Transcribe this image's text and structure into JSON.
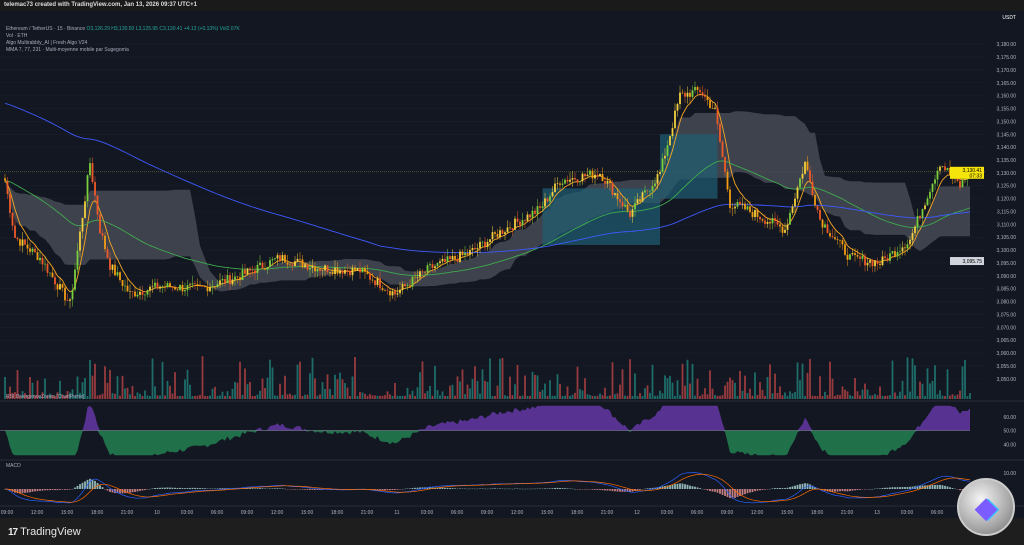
{
  "header": {
    "credit": "telemac73 created with TradingView.com, Jan 13, 2026 09:37 UTC+1"
  },
  "legend": {
    "symbol": "Ethereum / TetherUS · 15 · Binance",
    "ohlc": "O3,126.29 H3,130.50 L3,125.95 C3,130.41 +4.13 (+0.13%) Vol2.07K",
    "vol": "Vol · ETH",
    "algo": "Algo Multirabbly_AI | Fresh Algo V24",
    "mma": "MMA 7, 77, 231 · Multi-moyenne mobile par Sugegorria"
  },
  "footer": {
    "brand": "TradingView",
    "logo_mark": "17"
  },
  "coin_logo": {
    "icon": "crypto-coin-logo",
    "mark": "C"
  },
  "colors": {
    "background": "#131722",
    "up": "#26a69a",
    "down": "#ef5350",
    "candle_up": "#7ccf3c",
    "candle_down": "#f05a28",
    "ma_fast": "#f5a623",
    "ma_mid": "#3faa4f",
    "ma_slow": "#3d5afe",
    "cloud": "#4a4d57",
    "cloud_teal": "#1f5f73",
    "rsi_up": "#9c4dff",
    "rsi_down": "#2ecc71",
    "price_label": "#f5e50a"
  },
  "chart_data": [
    {
      "type": "candlestick",
      "title": "Ethereum / TetherUS · 15 · Binance",
      "currency": "USDT",
      "ylim": [
        3048,
        3182
      ],
      "yticks": [
        "3,180.00",
        "3,175.00",
        "3,170.00",
        "3,165.00",
        "3,160.00",
        "3,155.00",
        "3,150.00",
        "3,145.00",
        "3,140.00",
        "3,135.00",
        "3,130.00",
        "3,125.00",
        "3,120.00",
        "3,115.00",
        "3,110.00",
        "3,105.00",
        "3,100.00",
        "3,095.00",
        "3,090.00",
        "3,085.00",
        "3,080.00",
        "3,075.00",
        "3,070.00",
        "3,065.00",
        "3,060.00",
        "3,055.00",
        "3,050.00"
      ],
      "ytick_values": [
        3180,
        3175,
        3170,
        3165,
        3160,
        3155,
        3150,
        3145,
        3140,
        3135,
        3130,
        3125,
        3120,
        3115,
        3110,
        3105,
        3100,
        3095,
        3090,
        3085,
        3080,
        3075,
        3070,
        3065,
        3060,
        3055,
        3050
      ],
      "last_price": {
        "value": 3130.41,
        "label": "3,130.41",
        "countdown": "07:33"
      },
      "marked_price": {
        "value": 3095.75,
        "label": "3,095.75"
      },
      "bar_interval": "15",
      "path_bar_index": [
        0,
        4,
        14,
        26,
        34,
        38,
        42,
        50,
        62,
        78,
        94,
        110,
        126,
        142,
        156,
        170,
        186,
        198,
        214,
        222,
        238,
        250,
        262,
        270,
        278,
        284,
        290,
        296,
        312,
        320,
        326,
        338,
        350,
        362,
        374,
        382,
        386
      ],
      "path_close": [
        3127,
        3105,
        3097,
        3079,
        3134,
        3108,
        3094,
        3083,
        3086,
        3085,
        3090,
        3097,
        3093,
        3092,
        3083,
        3093,
        3099,
        3107,
        3116,
        3127,
        3130,
        3114,
        3130,
        3160,
        3162,
        3154,
        3118,
        3116,
        3108,
        3134,
        3112,
        3097,
        3095,
        3104,
        3134,
        3125,
        3130.41
      ],
      "xticks": [
        "09:00",
        "12:00",
        "15:00",
        "18:00",
        "21:00",
        "10",
        "03:00",
        "06:00",
        "09:00",
        "12:00",
        "15:00",
        "18:00",
        "21:00",
        "11",
        "03:00",
        "06:00",
        "09:00",
        "12:00",
        "15:00",
        "18:00",
        "21:00",
        "12",
        "03:00",
        "06:00",
        "09:00",
        "12:00",
        "15:00",
        "18:00",
        "21:00",
        "13",
        "03:00",
        "06:00"
      ]
    },
    {
      "type": "bar",
      "title": "Vol · ETH"
    },
    {
      "type": "area",
      "title": "RSI DivergenceZones [ChartPrime]",
      "ylim": [
        30,
        70
      ],
      "yticks": [
        "60.00",
        "50.00",
        "40.00"
      ],
      "ytick_values": [
        60,
        50,
        40
      ],
      "midline": 50
    },
    {
      "type": "line",
      "title": "MACD",
      "yticks": [
        "10.00"
      ],
      "ytick_values": [
        10
      ]
    }
  ]
}
